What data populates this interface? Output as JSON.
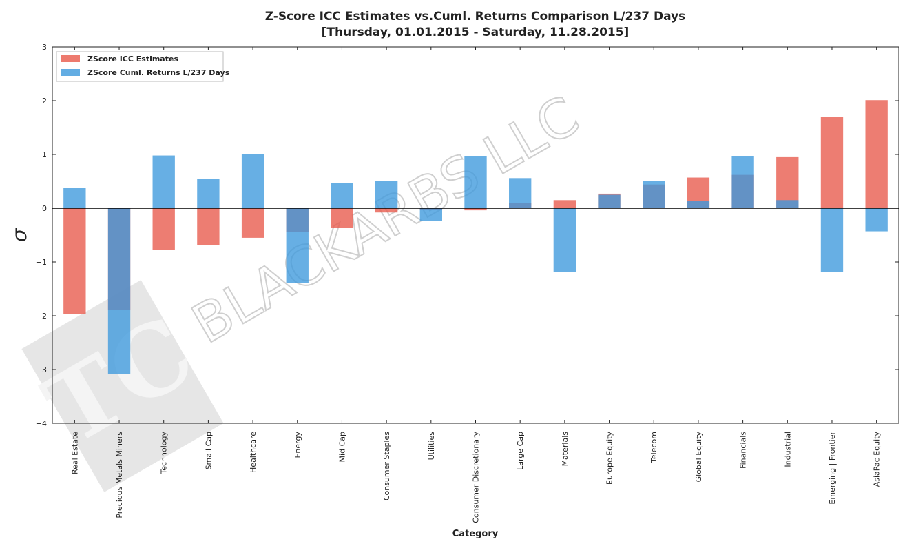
{
  "chart_data": {
    "type": "bar",
    "title": "Z-Score ICC Estimates vs.Cuml. Returns Comparison L/237 Days",
    "subtitle": "[Thursday, 01.01.2015 - Saturday, 11.28.2015]",
    "xlabel": "Category",
    "ylabel": "σ",
    "ylim": [
      -4,
      3
    ],
    "yticks": [
      "3",
      "2",
      "1",
      "0",
      "−1",
      "−2",
      "−3",
      "−4"
    ],
    "grid": false,
    "legend_position": "top-left",
    "categories": [
      "Real Estate",
      "Precious Metals Miners",
      "Technology",
      "Small Cap",
      "Healthcare",
      "Energy",
      "Mid Cap",
      "Consumer Staples",
      "Utilities",
      "Consumer Discretionary",
      "Large Cap",
      "Materials",
      "Europe Equity",
      "Telecom",
      "Global Equity",
      "Financials",
      "Industrial",
      "Emerging | Frontier",
      "AsiaPac Equity"
    ],
    "series": [
      {
        "name": "ZScore ICC Estimates",
        "color": "#e8594a",
        "values": [
          -1.97,
          -1.89,
          -0.78,
          -0.68,
          -0.55,
          -0.44,
          -0.36,
          -0.08,
          -0.03,
          -0.04,
          0.1,
          0.15,
          0.27,
          0.44,
          0.57,
          0.62,
          0.95,
          1.7,
          2.01
        ]
      },
      {
        "name": "ZScore Cuml. Returns L/237 Days",
        "color": "#3c99dc",
        "values": [
          0.38,
          -3.08,
          0.98,
          0.55,
          1.01,
          -1.39,
          0.47,
          0.51,
          -0.24,
          0.97,
          0.56,
          -1.18,
          0.25,
          0.51,
          0.13,
          0.97,
          0.15,
          -1.19,
          -0.43
        ]
      }
    ]
  },
  "watermark": {
    "text": "BLACKARBS LLC",
    "logo_text": "TC"
  }
}
